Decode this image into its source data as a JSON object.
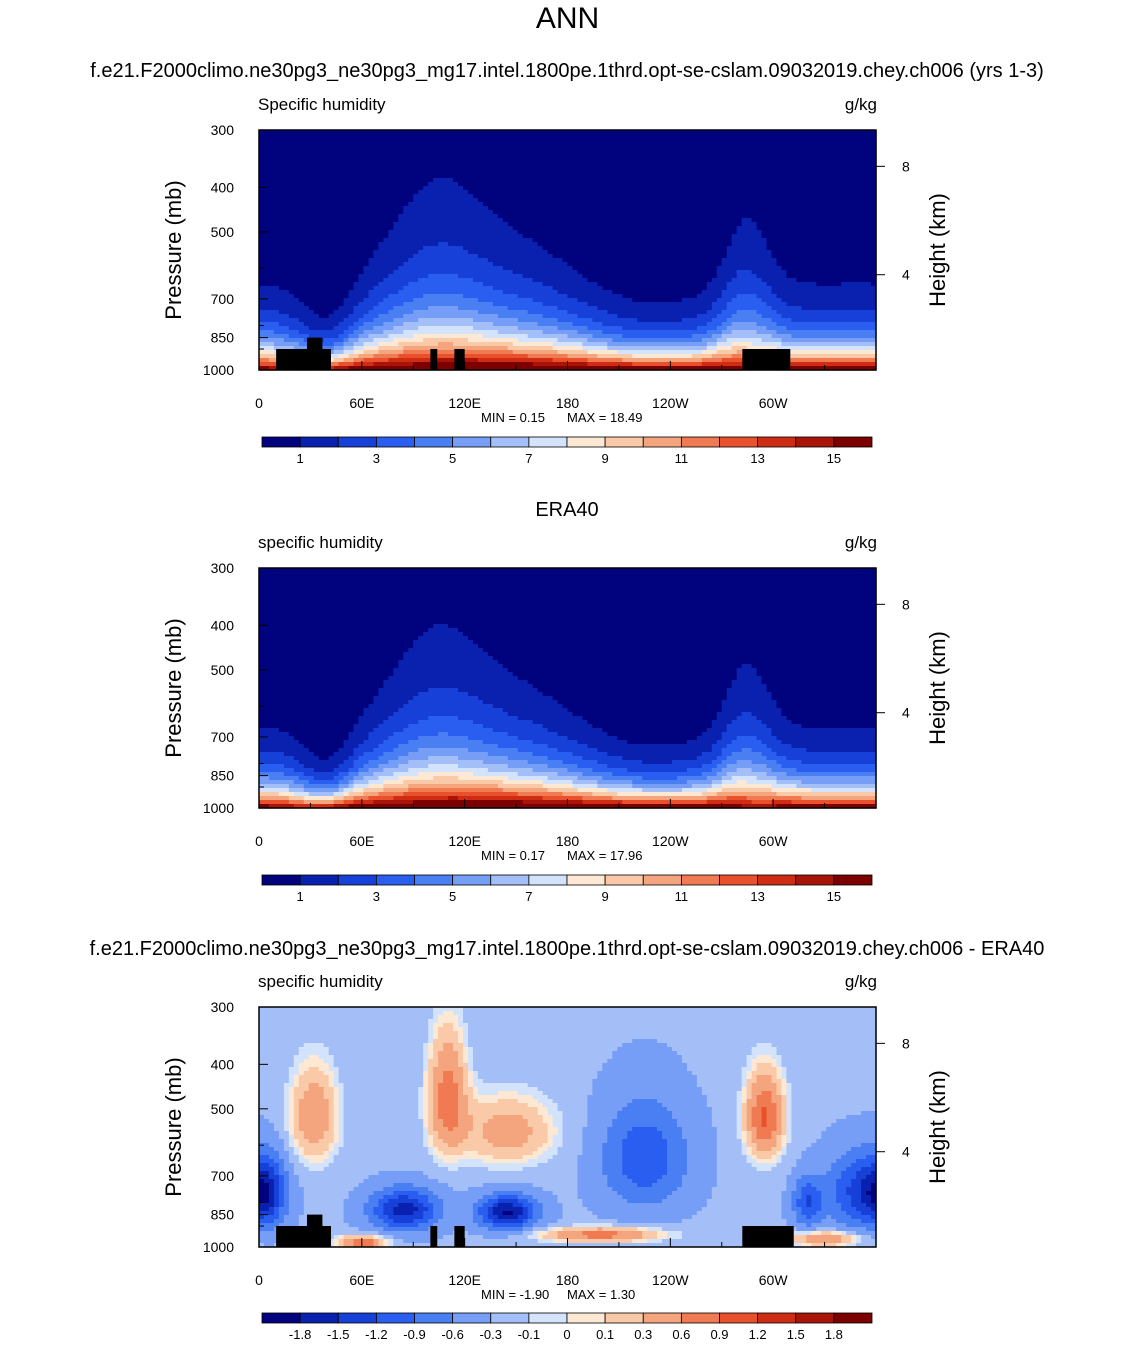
{
  "figure_title": "ANN",
  "chart_data": [
    {
      "type": "heatmap",
      "panel_title": "f.e21.F2000climo.ne30pg3_ne30pg3_mg17.intel.1800pe.1thrd.opt-se-cslam.09032019.chey.ch006 (yrs 1-3)",
      "variable": "Specific humidity",
      "units": "g/kg",
      "ylabel": "Pressure (mb)",
      "ylabel_right": "Height (km)",
      "x_ticks": [
        "0",
        "60E",
        "120E",
        "180",
        "120W",
        "60W"
      ],
      "y_ticks": [
        "300",
        "400",
        "500",
        "700",
        "850",
        "1000"
      ],
      "right_ticks": [
        "8",
        "4"
      ],
      "xlim": [
        0,
        360
      ],
      "ylim": [
        1000,
        300
      ],
      "min_label": "MIN =   0.15",
      "max_label": "MAX =  18.49",
      "colorbar_labels": [
        "1",
        "3",
        "5",
        "7",
        "9",
        "11",
        "13",
        "15"
      ],
      "colorbar_colors": [
        "#00037d",
        "#0a21b0",
        "#1640d8",
        "#2a5ef0",
        "#4a7ef3",
        "#769ef6",
        "#a4bff8",
        "#d4e3fc",
        "#fde8d3",
        "#f9c9a8",
        "#f5a57e",
        "#f07b52",
        "#e8512b",
        "#ce2d14",
        "#a91408",
        "#7c0000"
      ],
      "contour_levels": [
        1,
        2,
        3,
        4,
        5,
        6,
        7,
        8,
        9,
        10,
        11,
        12,
        13,
        14,
        15
      ],
      "topography_blocks": [
        {
          "lon": [
            10,
            42
          ],
          "pressure_top": 900
        },
        {
          "lon": [
            28,
            37
          ],
          "pressure_top": 850
        },
        {
          "lon": [
            100,
            104
          ],
          "pressure_top": 900
        },
        {
          "lon": [
            114,
            120
          ],
          "pressure_top": 900
        },
        {
          "lon": [
            282,
            310
          ],
          "pressure_top": 900
        }
      ]
    },
    {
      "type": "heatmap",
      "panel_title": "ERA40",
      "variable": "specific humidity",
      "units": "g/kg",
      "ylabel": "Pressure (mb)",
      "ylabel_right": "Height (km)",
      "x_ticks": [
        "0",
        "60E",
        "120E",
        "180",
        "120W",
        "60W"
      ],
      "y_ticks": [
        "300",
        "400",
        "500",
        "700",
        "850",
        "1000"
      ],
      "right_ticks": [
        "8",
        "4"
      ],
      "xlim": [
        0,
        360
      ],
      "ylim": [
        1000,
        300
      ],
      "min_label": "MIN =   0.17",
      "max_label": "MAX =  17.96",
      "colorbar_labels": [
        "1",
        "3",
        "5",
        "7",
        "9",
        "11",
        "13",
        "15"
      ],
      "colorbar_colors": [
        "#00037d",
        "#0a21b0",
        "#1640d8",
        "#2a5ef0",
        "#4a7ef3",
        "#769ef6",
        "#a4bff8",
        "#d4e3fc",
        "#fde8d3",
        "#f9c9a8",
        "#f5a57e",
        "#f07b52",
        "#e8512b",
        "#ce2d14",
        "#a91408",
        "#7c0000"
      ],
      "contour_levels": [
        1,
        2,
        3,
        4,
        5,
        6,
        7,
        8,
        9,
        10,
        11,
        12,
        13,
        14,
        15
      ],
      "topography_blocks": []
    },
    {
      "type": "heatmap",
      "panel_title": "f.e21.F2000climo.ne30pg3_ne30pg3_mg17.intel.1800pe.1thrd.opt-se-cslam.09032019.chey.ch006 - ERA40",
      "variable": "specific humidity",
      "units": "g/kg",
      "ylabel": "Pressure (mb)",
      "ylabel_right": "Height (km)",
      "x_ticks": [
        "0",
        "60E",
        "120E",
        "180",
        "120W",
        "60W"
      ],
      "y_ticks": [
        "300",
        "400",
        "500",
        "700",
        "850",
        "1000"
      ],
      "right_ticks": [
        "8",
        "4"
      ],
      "xlim": [
        0,
        360
      ],
      "ylim": [
        1000,
        300
      ],
      "min_label": "MIN =  -1.90",
      "max_label": "MAX =   1.30",
      "colorbar_labels": [
        "-1.8",
        "-1.5",
        "-1.2",
        "-0.9",
        "-0.6",
        "-0.3",
        "-0.1",
        "0",
        "0.1",
        "0.3",
        "0.6",
        "0.9",
        "1.2",
        "1.5",
        "1.8"
      ],
      "colorbar_colors": [
        "#00037d",
        "#0a21b0",
        "#1640d8",
        "#2a5ef0",
        "#4a7ef3",
        "#769ef6",
        "#a4bff8",
        "#d4e3fc",
        "#fde8d3",
        "#f9c9a8",
        "#f5a57e",
        "#f07b52",
        "#e8512b",
        "#ce2d14",
        "#a91408",
        "#7c0000"
      ],
      "contour_levels": [
        -1.8,
        -1.5,
        -1.2,
        -0.9,
        -0.6,
        -0.3,
        -0.1,
        0,
        0.1,
        0.3,
        0.6,
        0.9,
        1.2,
        1.5,
        1.8
      ],
      "topography_blocks": [
        {
          "lon": [
            10,
            42
          ],
          "pressure_top": 900
        },
        {
          "lon": [
            28,
            37
          ],
          "pressure_top": 850
        },
        {
          "lon": [
            100,
            104
          ],
          "pressure_top": 900
        },
        {
          "lon": [
            114,
            120
          ],
          "pressure_top": 900
        },
        {
          "lon": [
            282,
            312
          ],
          "pressure_top": 900
        }
      ]
    }
  ]
}
